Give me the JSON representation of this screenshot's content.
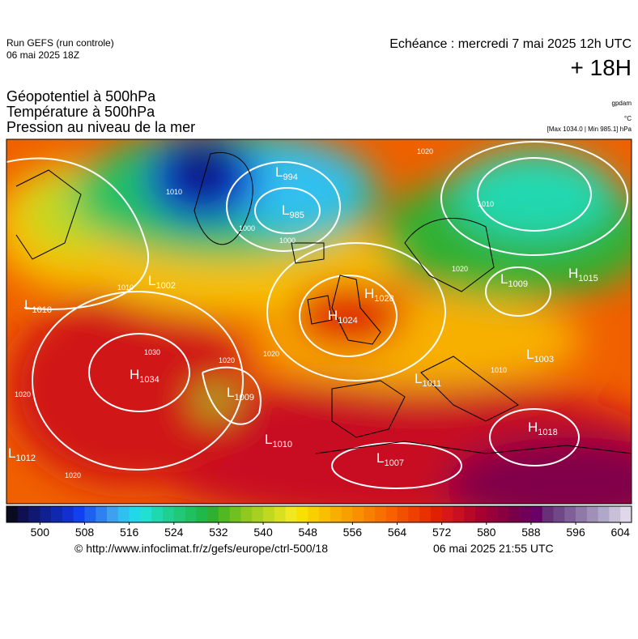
{
  "header": {
    "run": "Run GEFS (run controle)",
    "run_date": "06 mai 2025 18Z",
    "valid": "Echéance : mercredi 7 mai 2025 12h UTC",
    "lead": "+ 18H",
    "fields": [
      "Géopotentiel à 500hPa",
      "Température à 500hPa",
      "Pression au niveau de la mer"
    ],
    "units": [
      "gpdam",
      "°C"
    ],
    "extremes": "[Max 1034.0 | Min 985.1] hPa"
  },
  "systems": [
    {
      "letter": "L",
      "value": "994"
    },
    {
      "letter": "L",
      "value": "985"
    },
    {
      "letter": "L",
      "value": "1010"
    },
    {
      "letter": "L",
      "value": "1002"
    },
    {
      "letter": "H",
      "value": "1028"
    },
    {
      "letter": "H",
      "value": "1024"
    },
    {
      "letter": "H",
      "value": "1034"
    },
    {
      "letter": "L",
      "value": "1009"
    },
    {
      "letter": "L",
      "value": "1010"
    },
    {
      "letter": "L",
      "value": "1012"
    },
    {
      "letter": "L",
      "value": "1007"
    },
    {
      "letter": "H",
      "value": "1018"
    },
    {
      "letter": "L",
      "value": "1009"
    },
    {
      "letter": "H",
      "value": "1015"
    },
    {
      "letter": "L",
      "value": "1003"
    },
    {
      "letter": "L",
      "value": "1011"
    }
  ],
  "isobar_labels": [
    "1010",
    "1000",
    "1000",
    "1010",
    "1020",
    "1030",
    "1020",
    "1020",
    "1020",
    "1020",
    "1010",
    "1010",
    "1020"
  ],
  "colorbar": {
    "range": [
      494,
      606
    ],
    "ticks": [
      500,
      508,
      516,
      524,
      532,
      540,
      548,
      556,
      564,
      572,
      580,
      588,
      596,
      604
    ],
    "colors": [
      "#0b0b20",
      "#101050",
      "#101870",
      "#102090",
      "#1028b0",
      "#1030d0",
      "#1040f0",
      "#2060f0",
      "#3080f0",
      "#40a0f0",
      "#30c0f0",
      "#20d8e8",
      "#20e0d0",
      "#20d8b0",
      "#20d090",
      "#20c878",
      "#20c060",
      "#20b848",
      "#30b030",
      "#50b820",
      "#70c020",
      "#90c820",
      "#a8d020",
      "#c0d820",
      "#d8e020",
      "#f0e820",
      "#f8e000",
      "#f8d000",
      "#f8c000",
      "#f8b000",
      "#f8a000",
      "#f89000",
      "#f88000",
      "#f87000",
      "#f86000",
      "#f05000",
      "#f04000",
      "#e83000",
      "#e02000",
      "#d81818",
      "#c81020",
      "#b80828",
      "#a80030",
      "#980038",
      "#880040",
      "#780048",
      "#700058",
      "#680068",
      "#683078",
      "#704888",
      "#806098",
      "#9078a8",
      "#a090b8",
      "#b0a8c8",
      "#c8c0d8",
      "#e0d8e8"
    ]
  },
  "footer": {
    "url": "© http://www.infoclimat.fr/z/gefs/europe/ctrl-500/18",
    "generated": "06 mai 2025 21:55 UTC"
  }
}
